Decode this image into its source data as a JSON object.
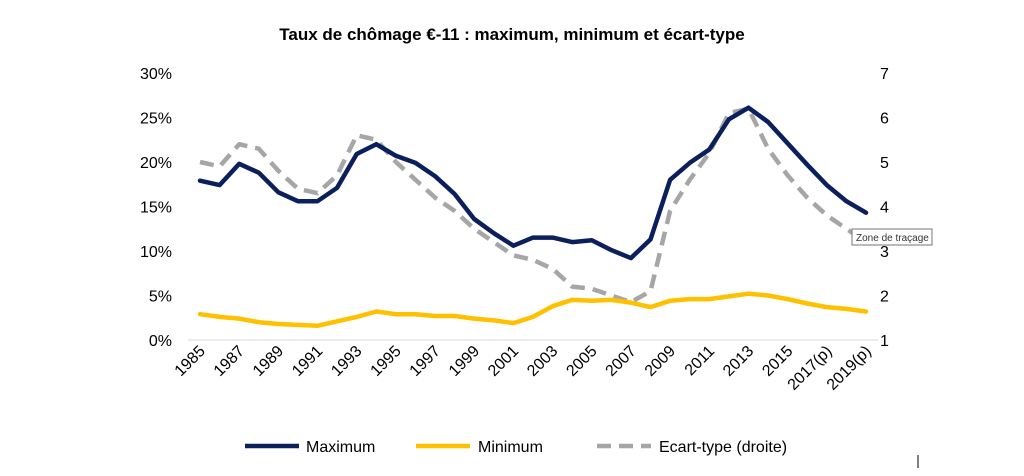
{
  "chart_data": {
    "type": "line",
    "title": "Taux de chômage €-11 : maximum, minimum et écart-type",
    "x": [
      "1985",
      "1986",
      "1987",
      "1988",
      "1989",
      "1990",
      "1991",
      "1992",
      "1993",
      "1994",
      "1995",
      "1996",
      "1997",
      "1998",
      "1999",
      "2000",
      "2001",
      "2002",
      "2003",
      "2004",
      "2005",
      "2006",
      "2007",
      "2008",
      "2009",
      "2010",
      "2011",
      "2012",
      "2013",
      "2014",
      "2015",
      "2016",
      "2017(p)",
      "2018(p)",
      "2019(p)"
    ],
    "x_tick_labels": [
      "1985",
      "1987",
      "1989",
      "1991",
      "1993",
      "1995",
      "1997",
      "1999",
      "2001",
      "2003",
      "2005",
      "2007",
      "2009",
      "2011",
      "2013",
      "2015",
      "2017(p)",
      "2019(p)"
    ],
    "y_left": {
      "ylim": [
        0,
        30
      ],
      "ticks": [
        0,
        5,
        10,
        15,
        20,
        25,
        30
      ],
      "tick_labels": [
        "0%",
        "5%",
        "10%",
        "15%",
        "20%",
        "25%",
        "30%"
      ]
    },
    "y_right": {
      "ylim": [
        1,
        7
      ],
      "ticks": [
        1,
        2,
        3,
        4,
        5,
        6,
        7
      ],
      "tick_labels": [
        "1",
        "2",
        "3",
        "4",
        "5",
        "6",
        "7"
      ]
    },
    "series": [
      {
        "name": "Maximum",
        "axis": "left",
        "color": "#0b1f5c",
        "style": "solid",
        "values": [
          17.9,
          17.4,
          19.8,
          18.8,
          16.6,
          15.6,
          15.6,
          17.1,
          20.9,
          22.0,
          20.7,
          19.9,
          18.4,
          16.4,
          13.6,
          12.0,
          10.6,
          11.5,
          11.5,
          11.0,
          11.2,
          10.1,
          9.2,
          11.3,
          18.0,
          19.9,
          21.4,
          24.8,
          26.1,
          24.5,
          22.1,
          19.7,
          17.4,
          15.6,
          14.3
        ]
      },
      {
        "name": "Minimum",
        "axis": "left",
        "color": "#ffc000",
        "style": "solid",
        "values": [
          2.9,
          2.6,
          2.4,
          2.0,
          1.8,
          1.7,
          1.6,
          2.1,
          2.6,
          3.2,
          2.9,
          2.9,
          2.7,
          2.7,
          2.4,
          2.2,
          1.9,
          2.6,
          3.8,
          4.5,
          4.4,
          4.5,
          4.2,
          3.7,
          4.4,
          4.6,
          4.6,
          4.9,
          5.2,
          5.0,
          4.6,
          4.1,
          3.7,
          3.5,
          3.2
        ]
      },
      {
        "name": "Ecart-type (droite)",
        "axis": "right",
        "color": "#a6a6a6",
        "style": "dashed",
        "values": [
          5.0,
          4.9,
          5.4,
          5.3,
          4.8,
          4.4,
          4.3,
          4.7,
          5.6,
          5.5,
          5.0,
          4.6,
          4.2,
          3.9,
          3.5,
          3.2,
          2.9,
          2.8,
          2.6,
          2.2,
          2.15,
          2.0,
          1.85,
          2.1,
          3.9,
          4.6,
          5.2,
          6.1,
          6.2,
          5.3,
          4.7,
          4.2,
          3.8,
          3.5,
          3.2
        ]
      }
    ],
    "legend_position": "bottom",
    "grid": false
  },
  "tooltip": {
    "label": "Zone de traçage"
  }
}
